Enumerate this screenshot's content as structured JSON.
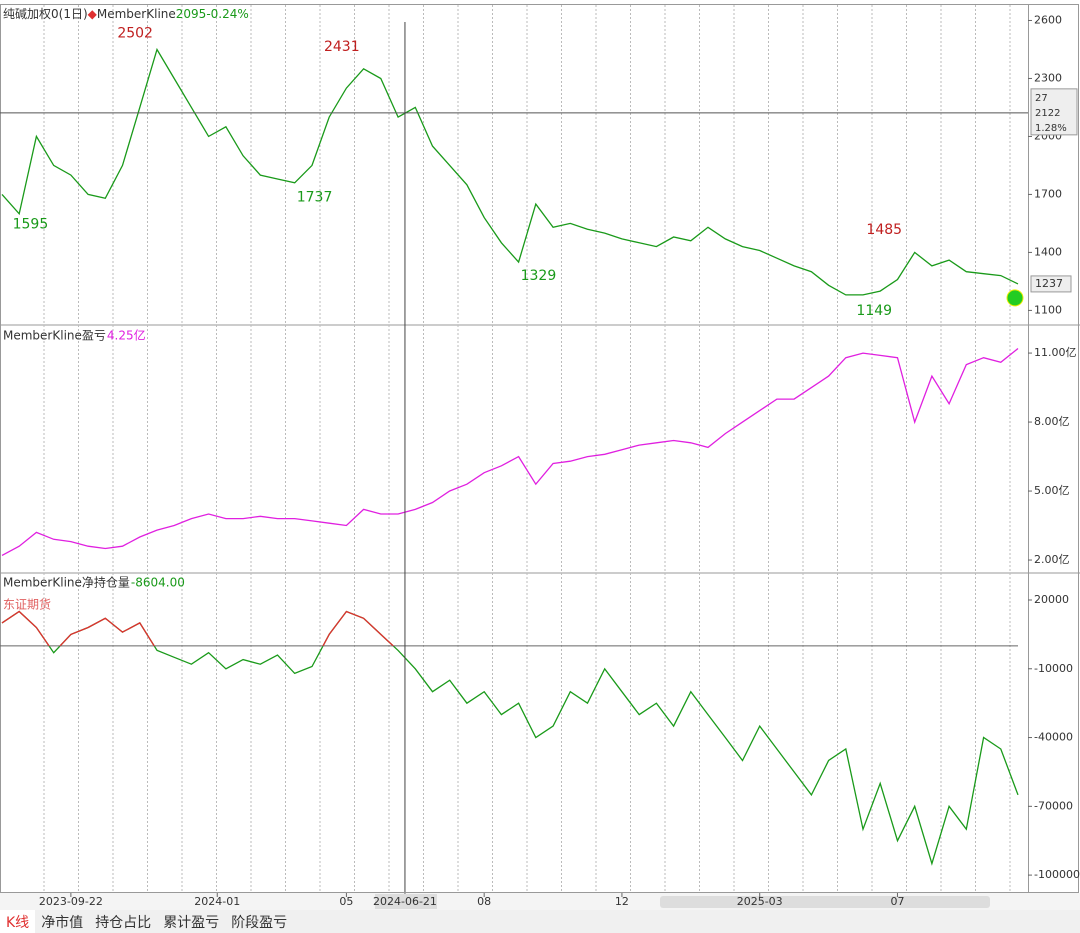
{
  "chart_data": [
    {
      "type": "line",
      "title": "纯碱加权0(1日)",
      "indicator": "MemberKline",
      "quote": 2095,
      "change_label": "-0.24%",
      "color": "#1a9a1a",
      "values": [
        1700,
        1600,
        2000,
        1850,
        1800,
        1700,
        1680,
        1850,
        2150,
        2450,
        2300,
        2150,
        2000,
        2050,
        1900,
        1800,
        1780,
        1760,
        1850,
        2100,
        2250,
        2350,
        2300,
        2100,
        2150,
        1950,
        1850,
        1750,
        1580,
        1450,
        1350,
        1650,
        1530,
        1550,
        1520,
        1500,
        1470,
        1450,
        1430,
        1480,
        1460,
        1530,
        1470,
        1430,
        1410,
        1370,
        1330,
        1300,
        1230,
        1180,
        1180,
        1200,
        1260,
        1400,
        1330,
        1360,
        1300,
        1290,
        1280,
        1237
      ],
      "ylim": [
        1040,
        2680
      ],
      "yticks": [
        2600,
        2300,
        2000,
        1700,
        1400,
        1100
      ],
      "high_labels": [
        {
          "x": 9,
          "value": 2502
        },
        {
          "x": 21,
          "value": 2431
        },
        {
          "x": 52.5,
          "value": 1485
        }
      ],
      "low_labels": [
        {
          "x": 0.5,
          "value": 1595
        },
        {
          "x": 17,
          "value": 1737
        },
        {
          "x": 30,
          "value": 1329
        },
        {
          "x": 49.5,
          "value": 1149
        }
      ],
      "crosshair": {
        "diff": 27,
        "price": 2122,
        "pct_label": "1.28%"
      }
    },
    {
      "type": "line",
      "title": "MemberKline盈亏",
      "value_label": "4.25亿",
      "color": "#e020e0",
      "values": [
        2.2,
        2.6,
        3.2,
        2.9,
        2.8,
        2.6,
        2.5,
        2.6,
        3.0,
        3.3,
        3.5,
        3.8,
        4.0,
        3.8,
        3.8,
        3.9,
        3.8,
        3.8,
        3.7,
        3.6,
        3.5,
        4.2,
        4.0,
        4.0,
        4.2,
        4.5,
        5.0,
        5.3,
        5.8,
        6.1,
        6.5,
        5.3,
        6.2,
        6.3,
        6.5,
        6.6,
        6.8,
        7.0,
        7.1,
        7.2,
        7.1,
        6.9,
        7.5,
        8.0,
        8.5,
        9.0,
        9.0,
        9.5,
        10.0,
        10.8,
        11.0,
        10.9,
        10.8,
        8.0,
        10.0,
        8.8,
        10.5,
        10.8,
        10.6,
        11.2
      ],
      "ylim": [
        1.48,
        12.09
      ],
      "yticks": [
        {
          "value": 11,
          "label": "11.00亿"
        },
        {
          "value": 8,
          "label": "8.00亿"
        },
        {
          "value": 5,
          "label": "5.00亿"
        },
        {
          "value": 2,
          "label": "2.00亿"
        }
      ]
    },
    {
      "type": "line",
      "title": "MemberKline净持仓量",
      "value_label": "-8604.00",
      "broker": "东证期货",
      "color": "#1a9a1a",
      "up_color": "#e03030",
      "baseline": 0,
      "values": [
        10000,
        15000,
        8000,
        -3000,
        5000,
        8000,
        12000,
        6000,
        10000,
        -2000,
        -5000,
        -8000,
        -3000,
        -10000,
        -6000,
        -8000,
        -4000,
        -12000,
        -9000,
        5000,
        15000,
        12000,
        5000,
        -2000,
        -10000,
        -20000,
        -15000,
        -25000,
        -20000,
        -30000,
        -25000,
        -40000,
        -35000,
        -20000,
        -25000,
        -10000,
        -20000,
        -30000,
        -25000,
        -35000,
        -20000,
        -30000,
        -40000,
        -50000,
        -35000,
        -45000,
        -55000,
        -65000,
        -50000,
        -45000,
        -80000,
        -60000,
        -85000,
        -70000,
        -95000,
        -70000,
        -80000,
        -40000,
        -45000,
        -65000
      ],
      "ylim": [
        -106500,
        30900
      ],
      "yticks": [
        20000,
        -10000,
        -40000,
        -70000,
        -100000
      ]
    }
  ],
  "x_axis": {
    "x": [
      0,
      1,
      2,
      3,
      4,
      5,
      6,
      7,
      8,
      9,
      10,
      11,
      12,
      13,
      14,
      15,
      16,
      17,
      18,
      19,
      20,
      21,
      22,
      23,
      24,
      25,
      26,
      27,
      28,
      29,
      30,
      31,
      32,
      33,
      34,
      35,
      36,
      37,
      38,
      39,
      40,
      41,
      42,
      43,
      44,
      45,
      46,
      47,
      48,
      49,
      50,
      51,
      52,
      53,
      54,
      55,
      56,
      57,
      58,
      59
    ],
    "xlim": [
      0,
      59
    ],
    "cursor": 23.4,
    "xticks": [
      {
        "value": 4,
        "label": "2023-09-22"
      },
      {
        "value": 12.5,
        "label": "2024-01"
      },
      {
        "value": 20,
        "label": "05"
      },
      {
        "value": 23.4,
        "label": "2024-06-21"
      },
      {
        "value": 28,
        "label": "08"
      },
      {
        "value": 36,
        "label": "12"
      },
      {
        "value": 44,
        "label": "2025-03"
      },
      {
        "value": 52,
        "label": "07"
      }
    ]
  },
  "tabs": [
    "K线",
    "净市值",
    "持仓占比",
    "累计盈亏",
    "阶段盈亏"
  ]
}
